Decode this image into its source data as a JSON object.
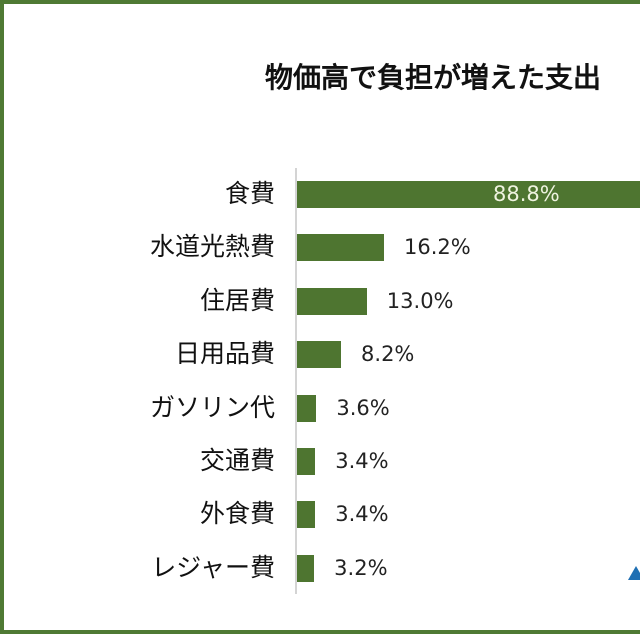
{
  "title": "物価高で負担が増えた支出",
  "colors": {
    "border": "#4f7a34",
    "bar": "#4e7530",
    "axis": "#d4d4d4",
    "inside_label": "#eef3df"
  },
  "chart_data": {
    "type": "bar",
    "orientation": "horizontal",
    "title": "物価高で負担が増えた支出",
    "categories": [
      "食費",
      "水道光熱費",
      "住居費",
      "日用品費",
      "ガソリン代",
      "交通費",
      "外食費",
      "レジャー費"
    ],
    "values": [
      88.8,
      16.2,
      13.0,
      8.2,
      3.6,
      3.4,
      3.4,
      3.2
    ],
    "labels": [
      "88.8%",
      "16.2%",
      "13.0%",
      "8.2%",
      "3.6%",
      "3.4%",
      "3.4%",
      "3.2%"
    ],
    "unit": "%",
    "xlabel": "",
    "ylabel": "",
    "grid": false,
    "legend": null
  }
}
